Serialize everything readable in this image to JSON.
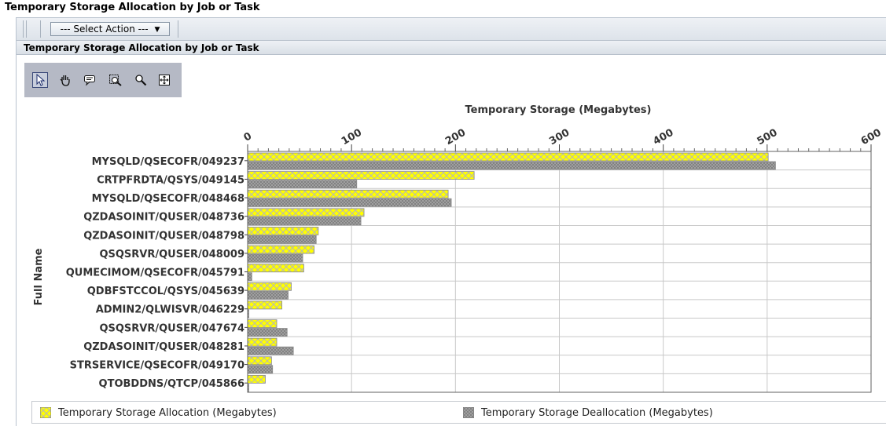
{
  "page": {
    "title": "Temporary Storage Allocation by Job or Task"
  },
  "toolbar": {
    "select_action": "--- Select Action ---"
  },
  "section": {
    "header": "Temporary Storage Allocation by Job or Task"
  },
  "tools": [
    "select-icon",
    "pan-icon",
    "annotate-icon",
    "zoom-box-icon",
    "zoom-icon",
    "fit-icon"
  ],
  "colors": {
    "allocation": "#ffff00",
    "deallocation": "#a0a0a0",
    "grid": "#c8c8c8",
    "frame": "#606060"
  },
  "chart_data": {
    "type": "bar",
    "orientation": "horizontal",
    "title": "Temporary Storage (Megabytes)",
    "xlabel": "Temporary Storage (Megabytes)",
    "ylabel": "Full Name",
    "xlim": [
      0,
      600
    ],
    "xticks": [
      0,
      100,
      200,
      300,
      400,
      500,
      600
    ],
    "grid": true,
    "legend_position": "bottom",
    "categories": [
      "MYSQLD/QSECOFR/049237",
      "CRTPFRDTA/QSYS/049145",
      "MYSQLD/QSECOFR/048468",
      "QZDASOINIT/QUSER/048736",
      "QZDASOINIT/QUSER/048798",
      "QSQSRVR/QUSER/048009",
      "QUMECIMOM/QSECOFR/045791",
      "QDBFSTCCOL/QSYS/045639",
      "ADMIN2/QLWISVR/046229",
      "QSQSRVR/QUSER/047674",
      "QZDASOINIT/QUSER/048281",
      "STRSERVICE/QSECOFR/049170",
      "QTOBDDNS/QTCP/045866"
    ],
    "series": [
      {
        "name": "Temporary Storage Allocation (Megabytes)",
        "values": [
          501,
          218,
          193,
          112,
          68,
          64,
          54,
          42,
          33,
          28,
          28,
          23,
          17
        ]
      },
      {
        "name": "Temporary Storage Deallocation (Megabytes)",
        "values": [
          508,
          105,
          196,
          109,
          66,
          53,
          4,
          39,
          1,
          38,
          44,
          24,
          0
        ]
      }
    ]
  }
}
